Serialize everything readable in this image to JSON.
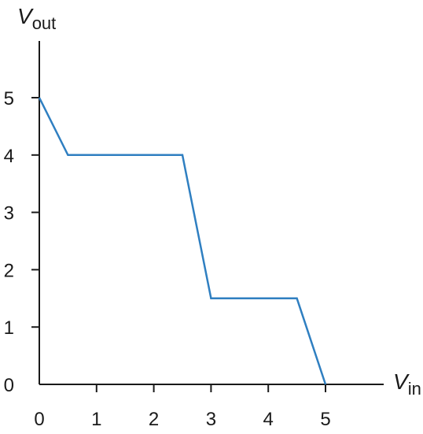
{
  "chart_data": {
    "type": "line",
    "xlabel": {
      "var": "V",
      "sub": "in"
    },
    "ylabel": {
      "var": "V",
      "sub": "out"
    },
    "xlim": [
      0,
      6
    ],
    "ylim": [
      0,
      6
    ],
    "x_ticks": [
      "0",
      "1",
      "2",
      "3",
      "4",
      "5"
    ],
    "y_ticks": [
      "0",
      "1",
      "2",
      "3",
      "4",
      "5"
    ],
    "grid": false,
    "legend": "none",
    "series": [
      {
        "color": "#2f7fc1",
        "x": [
          0,
          0.5,
          2.5,
          3,
          4.5,
          5
        ],
        "y": [
          5,
          4,
          4,
          1.5,
          1.5,
          0
        ]
      }
    ]
  }
}
